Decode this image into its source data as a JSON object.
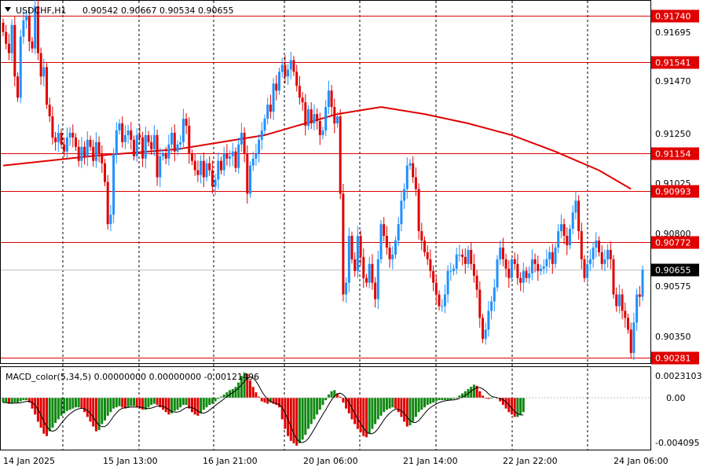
{
  "header": {
    "symbol": "USDCHF,H1",
    "ohlc": "0.90542 0.90667 0.90534 0.90655",
    "menu_icon": "triangle-down-icon"
  },
  "price_axis": {
    "labels": [
      "0.91695",
      "0.91470",
      "0.91250",
      "0.91025",
      "0.90800",
      "0.90575",
      "0.90350"
    ],
    "current_price": "0.90655"
  },
  "levels": [
    {
      "label": "0.91740",
      "value": 0.9174
    },
    {
      "label": "0.91541",
      "value": 0.91541
    },
    {
      "label": "0.91154",
      "value": 0.91154
    },
    {
      "label": "0.90993",
      "value": 0.90993
    },
    {
      "label": "0.90772",
      "value": 0.90772
    },
    {
      "label": "0.90281",
      "value": 0.90281
    }
  ],
  "indicator": {
    "title": "MACD_color(5,34,5) 0.00000000 0.00000000 -0.00121496",
    "axis_labels": [
      "0.0023103",
      "0.00",
      "-0.004095"
    ]
  },
  "time_axis": {
    "labels": [
      "14 Jan 2025",
      "15 Jan 13:00",
      "16 Jan 21:00",
      "20 Jan 06:00",
      "21 Jan 14:00",
      "22 Jan 22:00",
      "24 Jan 06:00"
    ]
  },
  "colors": {
    "bull": "#1e90ff",
    "bear": "#e00000",
    "level_line": "#e00000",
    "ma_line": "#e00000",
    "macd_up": "#118811",
    "macd_down": "#e00000",
    "current_price_line": "#c0c0c0"
  },
  "chart_data": {
    "type": "candlestick",
    "symbol": "USDCHF",
    "timeframe": "H1",
    "y_range": [
      0.9026,
      0.918
    ],
    "macd_range": [
      -0.0042,
      0.0026
    ],
    "closes": [
      0.9167,
      0.9162,
      0.9158,
      0.917,
      0.9148,
      0.9139,
      0.9165,
      0.9172,
      0.9174,
      0.9163,
      0.916,
      0.9178,
      0.9158,
      0.9148,
      0.9152,
      0.9136,
      0.9131,
      0.9122,
      0.912,
      0.9124,
      0.9119,
      0.9116,
      0.9122,
      0.9124,
      0.9122,
      0.9118,
      0.9112,
      0.9118,
      0.9114,
      0.9121,
      0.9118,
      0.9112,
      0.912,
      0.9115,
      0.9111,
      0.9103,
      0.9085,
      0.9089,
      0.9115,
      0.9125,
      0.9128,
      0.912,
      0.9123,
      0.9125,
      0.9121,
      0.9114,
      0.9123,
      0.9122,
      0.9113,
      0.9123,
      0.912,
      0.9117,
      0.9123,
      0.9105,
      0.9114,
      0.9115,
      0.9113,
      0.9119,
      0.9124,
      0.9116,
      0.9119,
      0.912,
      0.913,
      0.9127,
      0.9115,
      0.9112,
      0.9108,
      0.9106,
      0.9112,
      0.9105,
      0.9111,
      0.9108,
      0.9101,
      0.9104,
      0.9112,
      0.9108,
      0.9115,
      0.9113,
      0.9114,
      0.9116,
      0.9109,
      0.9119,
      0.9124,
      0.9115,
      0.9098,
      0.911,
      0.9113,
      0.9115,
      0.9121,
      0.9125,
      0.913,
      0.9136,
      0.9133,
      0.9145,
      0.9142,
      0.915,
      0.9153,
      0.9148,
      0.9151,
      0.9155,
      0.915,
      0.9144,
      0.9139,
      0.9137,
      0.9127,
      0.9134,
      0.9128,
      0.9132,
      0.9129,
      0.9123,
      0.9125,
      0.9135,
      0.9142,
      0.9135,
      0.9128,
      0.9131,
      0.9098,
      0.9055,
      0.906,
      0.908,
      0.907,
      0.9065,
      0.908,
      0.9071,
      0.9062,
      0.906,
      0.9068,
      0.906,
      0.9053,
      0.907,
      0.9085,
      0.908,
      0.9075,
      0.907,
      0.9072,
      0.9078,
      0.9085,
      0.9095,
      0.91,
      0.911,
      0.9111,
      0.9105,
      0.91,
      0.9082,
      0.9078,
      0.9073,
      0.907,
      0.9065,
      0.906,
      0.9055,
      0.905,
      0.905,
      0.9055,
      0.9065,
      0.9065,
      0.9066,
      0.9072,
      0.9072,
      0.9071,
      0.9068,
      0.9074,
      0.9068,
      0.9063,
      0.9057,
      0.9045,
      0.9036,
      0.904,
      0.9048,
      0.9052,
      0.9058,
      0.907,
      0.9075,
      0.907,
      0.9066,
      0.9062,
      0.907,
      0.9068,
      0.9062,
      0.906,
      0.9065,
      0.9062,
      0.9064,
      0.907,
      0.9068,
      0.9065,
      0.9066,
      0.9067,
      0.907,
      0.9073,
      0.9068,
      0.9075,
      0.9082,
      0.9085,
      0.908,
      0.9076,
      0.9083,
      0.909,
      0.9095,
      0.9082,
      0.907,
      0.9062,
      0.9068,
      0.907,
      0.9075,
      0.9078,
      0.9073,
      0.9068,
      0.907,
      0.9074,
      0.907,
      0.9055,
      0.905,
      0.9055,
      0.9048,
      0.9045,
      0.904,
      0.903,
      0.9043,
      0.9055,
      0.9054,
      0.90655
    ],
    "ma_line": [
      [
        0,
        0.911
      ],
      [
        30,
        0.9114
      ],
      [
        60,
        0.9117
      ],
      [
        90,
        0.9123
      ],
      [
        115,
        0.9132
      ],
      [
        130,
        0.9135
      ],
      [
        145,
        0.9132
      ],
      [
        160,
        0.9128
      ],
      [
        175,
        0.9123
      ],
      [
        190,
        0.9116
      ],
      [
        205,
        0.9108
      ],
      [
        216,
        0.91
      ]
    ],
    "macd_hist": [
      -0.0004,
      -0.0004,
      -0.0005,
      -0.0005,
      -0.0004,
      -0.0004,
      -0.0003,
      -0.0002,
      -0.0002,
      -0.0004,
      -0.0009,
      -0.0014,
      -0.002,
      -0.0025,
      -0.003,
      -0.0032,
      -0.0028,
      -0.0025,
      -0.0021,
      -0.0018,
      -0.0015,
      -0.0013,
      -0.0011,
      -0.001,
      -0.0009,
      -0.0008,
      -0.0008,
      -0.0009,
      -0.0012,
      -0.0016,
      -0.002,
      -0.0024,
      -0.0028,
      -0.0027,
      -0.0022,
      -0.0019,
      -0.0015,
      -0.0012,
      -0.0009,
      -0.0008,
      -0.0007,
      -0.0008,
      -0.0009,
      -0.0008,
      -0.0007,
      -0.0007,
      -0.0008,
      -0.0009,
      -0.001,
      -0.001,
      -0.0008,
      -0.0006,
      -0.0005,
      -0.0006,
      -0.0008,
      -0.001,
      -0.0012,
      -0.0014,
      -0.0013,
      -0.0011,
      -0.001,
      -0.0008,
      -0.0006,
      -0.0006,
      -0.0009,
      -0.0012,
      -0.0014,
      -0.0015,
      -0.0013,
      -0.001,
      -0.0008,
      -0.0006,
      -0.0005,
      -0.0003,
      -0.0001,
      0.0001,
      0.0003,
      0.0005,
      0.0007,
      0.0008,
      0.001,
      0.0014,
      0.002,
      0.0023,
      0.0022,
      0.0016,
      0.001,
      0.0005,
      0.0001,
      -0.0003,
      -0.0004,
      -0.0005,
      -0.0004,
      -0.0005,
      -0.0006,
      -0.0008,
      -0.0018,
      -0.0026,
      -0.0032,
      -0.0036,
      -0.0038,
      -0.004,
      -0.0038,
      -0.0035,
      -0.0031,
      -0.0026,
      -0.0022,
      -0.0018,
      -0.0014,
      -0.001,
      -0.0006,
      -0.0002,
      0.0003,
      0.0006,
      0.0007,
      0.0004,
      0.0001,
      -0.0004,
      -0.0009,
      -0.0013,
      -0.0018,
      -0.0022,
      -0.0026,
      -0.0029,
      -0.0032,
      -0.0033,
      -0.003,
      -0.0026,
      -0.0022,
      -0.0018,
      -0.0015,
      -0.0012,
      -0.001,
      -0.0009,
      -0.0008,
      -0.0009,
      -0.0012,
      -0.0016,
      -0.002,
      -0.0024,
      -0.0023,
      -0.002,
      -0.0016,
      -0.0012,
      -0.001,
      -0.0008,
      -0.0006,
      -0.0005,
      -0.0004,
      -0.0003,
      -0.0002,
      -0.0002,
      -0.0002,
      -0.0002,
      -0.0002,
      -0.0001,
      0.0,
      0.0002,
      0.0004,
      0.0006,
      0.0008,
      0.001,
      0.0012,
      0.0011,
      0.0006,
      0.0002,
      0.0,
      -0.0001,
      0.0,
      0.0001,
      0.0,
      -0.0003,
      -0.0006,
      -0.0009,
      -0.0012,
      -0.0014,
      -0.0016,
      -0.0016,
      -0.0014,
      -0.0012
    ]
  }
}
